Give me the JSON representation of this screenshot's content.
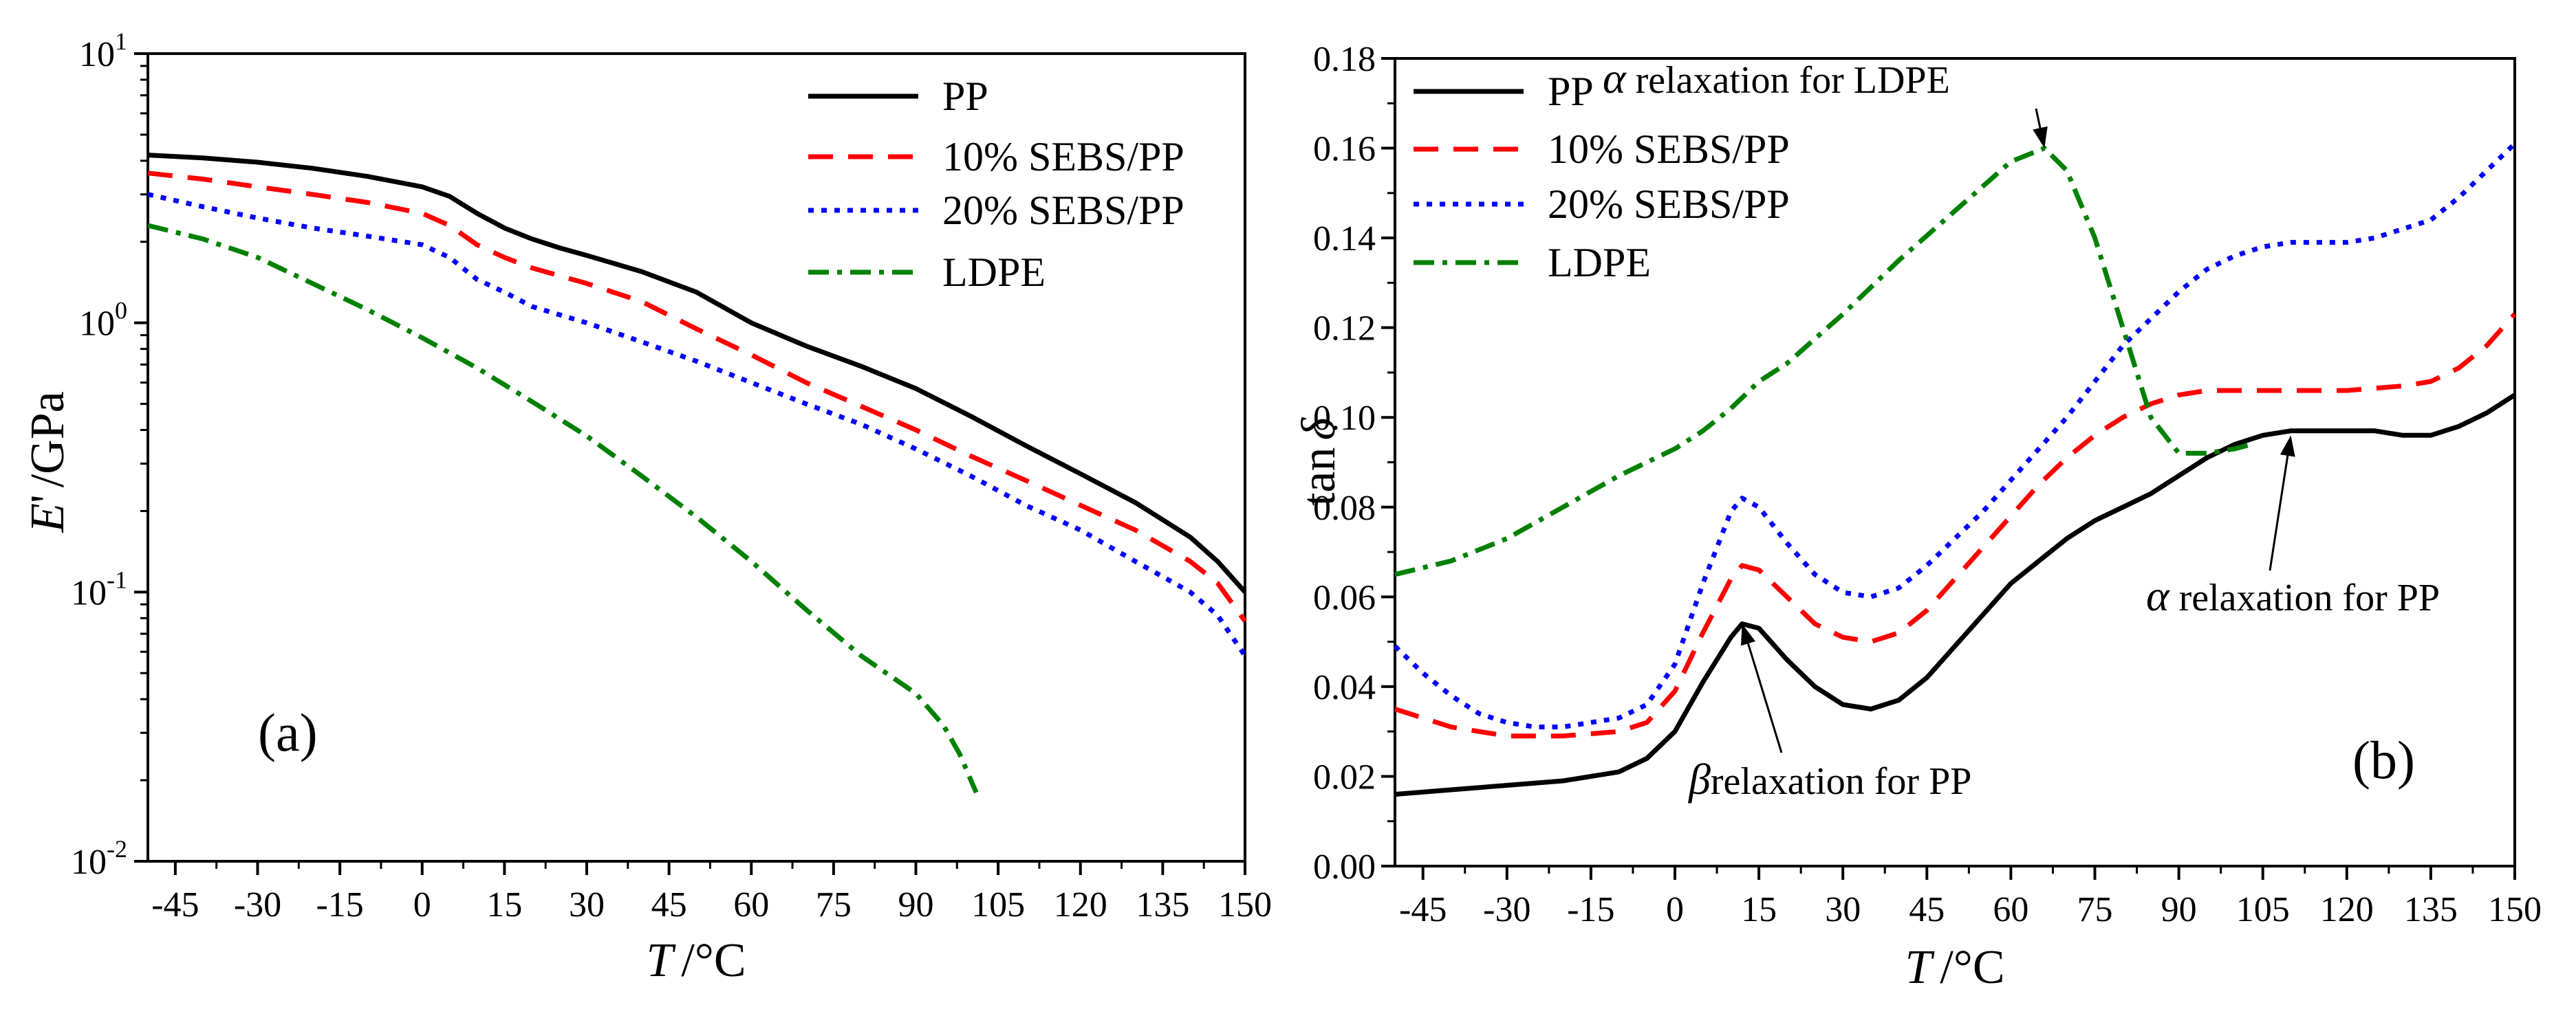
{
  "chart_data": [
    {
      "panel_label": "(a)",
      "type": "line",
      "ylabel": "E' /GPa",
      "ylabel_main": "E",
      "ylabel_prime": "'",
      "ylabel_unit": "/GPa",
      "xlabel": "T /°C",
      "xlabel_var": "T",
      "xlabel_unit": "/°C",
      "xlim": [
        -50,
        150
      ],
      "ylim": [
        0.01,
        10
      ],
      "yscale": "log",
      "x_ticks": [
        -45,
        -30,
        -15,
        0,
        15,
        30,
        45,
        60,
        75,
        90,
        105,
        120,
        135,
        150
      ],
      "x_tick_labels": [
        "-45",
        "-30",
        "-15",
        "0",
        "15",
        "30",
        "45",
        "60",
        "75",
        "90",
        "105",
        "120",
        "135",
        "150"
      ],
      "y_ticks": [
        {
          "value": 10,
          "base": "10",
          "exp": "1"
        },
        {
          "value": 1,
          "base": "10",
          "exp": "0"
        },
        {
          "value": 0.1,
          "base": "10",
          "exp": "-1"
        },
        {
          "value": 0.01,
          "base": "10",
          "exp": "-2"
        }
      ],
      "legend_position": "top-right",
      "series": [
        {
          "name": "PP",
          "color": "#000000",
          "style": "solid",
          "points": [
            [
              -50,
              4.2
            ],
            [
              -40,
              4.1
            ],
            [
              -30,
              3.95
            ],
            [
              -20,
              3.75
            ],
            [
              -10,
              3.5
            ],
            [
              0,
              3.2
            ],
            [
              5,
              2.95
            ],
            [
              10,
              2.55
            ],
            [
              15,
              2.25
            ],
            [
              20,
              2.05
            ],
            [
              25,
              1.9
            ],
            [
              30,
              1.78
            ],
            [
              40,
              1.55
            ],
            [
              50,
              1.3
            ],
            [
              60,
              1.0
            ],
            [
              70,
              0.82
            ],
            [
              80,
              0.69
            ],
            [
              90,
              0.57
            ],
            [
              100,
              0.45
            ],
            [
              110,
              0.35
            ],
            [
              120,
              0.275
            ],
            [
              130,
              0.215
            ],
            [
              140,
              0.16
            ],
            [
              145,
              0.13
            ],
            [
              150,
              0.1
            ]
          ]
        },
        {
          "name": "10% SEBS/PP",
          "color": "#ff0000",
          "style": "dashed",
          "points": [
            [
              -50,
              3.6
            ],
            [
              -40,
              3.42
            ],
            [
              -30,
              3.2
            ],
            [
              -20,
              3.0
            ],
            [
              -10,
              2.8
            ],
            [
              0,
              2.55
            ],
            [
              5,
              2.3
            ],
            [
              10,
              1.95
            ],
            [
              15,
              1.75
            ],
            [
              20,
              1.6
            ],
            [
              30,
              1.4
            ],
            [
              40,
              1.2
            ],
            [
              50,
              0.95
            ],
            [
              60,
              0.76
            ],
            [
              70,
              0.6
            ],
            [
              80,
              0.49
            ],
            [
              90,
              0.4
            ],
            [
              100,
              0.32
            ],
            [
              110,
              0.26
            ],
            [
              120,
              0.21
            ],
            [
              130,
              0.17
            ],
            [
              140,
              0.13
            ],
            [
              145,
              0.108
            ],
            [
              150,
              0.078
            ]
          ]
        },
        {
          "name": "20% SEBS/PP",
          "color": "#0000ff",
          "style": "dotted",
          "points": [
            [
              -50,
              3.0
            ],
            [
              -40,
              2.7
            ],
            [
              -30,
              2.45
            ],
            [
              -20,
              2.25
            ],
            [
              -10,
              2.1
            ],
            [
              0,
              1.95
            ],
            [
              5,
              1.75
            ],
            [
              10,
              1.45
            ],
            [
              15,
              1.3
            ],
            [
              20,
              1.15
            ],
            [
              30,
              1.0
            ],
            [
              40,
              0.85
            ],
            [
              50,
              0.72
            ],
            [
              60,
              0.6
            ],
            [
              70,
              0.5
            ],
            [
              80,
              0.42
            ],
            [
              90,
              0.34
            ],
            [
              100,
              0.27
            ],
            [
              110,
              0.21
            ],
            [
              120,
              0.17
            ],
            [
              130,
              0.13
            ],
            [
              140,
              0.1
            ],
            [
              145,
              0.082
            ],
            [
              150,
              0.058
            ]
          ]
        },
        {
          "name": "LDPE",
          "color": "#008000",
          "style": "dashdot",
          "points": [
            [
              -50,
              2.3
            ],
            [
              -40,
              2.05
            ],
            [
              -30,
              1.75
            ],
            [
              -20,
              1.4
            ],
            [
              -10,
              1.12
            ],
            [
              0,
              0.88
            ],
            [
              10,
              0.68
            ],
            [
              20,
              0.51
            ],
            [
              30,
              0.38
            ],
            [
              40,
              0.27
            ],
            [
              50,
              0.19
            ],
            [
              60,
              0.13
            ],
            [
              70,
              0.086
            ],
            [
              80,
              0.058
            ],
            [
              90,
              0.042
            ],
            [
              95,
              0.032
            ],
            [
              98,
              0.025
            ],
            [
              101,
              0.018
            ]
          ]
        }
      ]
    },
    {
      "panel_label": "(b)",
      "type": "line",
      "ylabel": "tan δ",
      "ylabel_main": "tan",
      "ylabel_sym": "δ",
      "xlabel": "T /°C",
      "xlabel_var": "T",
      "xlabel_unit": "/°C",
      "xlim": [
        -50,
        150
      ],
      "ylim": [
        0,
        0.18
      ],
      "yscale": "linear",
      "x_ticks": [
        -45,
        -30,
        -15,
        0,
        15,
        30,
        45,
        60,
        75,
        90,
        105,
        120,
        135,
        150
      ],
      "x_tick_labels": [
        "-45",
        "-30",
        "-15",
        "0",
        "15",
        "30",
        "45",
        "60",
        "75",
        "90",
        "105",
        "120",
        "135",
        "150"
      ],
      "y_ticks": [
        0,
        0.02,
        0.04,
        0.06,
        0.08,
        0.1,
        0.12,
        0.14,
        0.16,
        0.18
      ],
      "y_tick_labels": [
        "0.00",
        "0.02",
        "0.04",
        "0.06",
        "0.08",
        "0.10",
        "0.12",
        "0.14",
        "0.16",
        "0.18"
      ],
      "legend_position": "top-left",
      "annotations": [
        {
          "greek": "α",
          "text": " relaxation for LDPE",
          "point": [
            66,
            0.16
          ]
        },
        {
          "greek": "β",
          "text": "relaxation for PP",
          "point": [
            12,
            0.054
          ]
        },
        {
          "greek": "α",
          "text": " relaxation for PP",
          "point": [
            110,
            0.096
          ]
        }
      ],
      "series": [
        {
          "name": "PP",
          "color": "#000000",
          "style": "solid",
          "points": [
            [
              -50,
              0.016
            ],
            [
              -40,
              0.017
            ],
            [
              -30,
              0.018
            ],
            [
              -20,
              0.019
            ],
            [
              -10,
              0.021
            ],
            [
              -5,
              0.024
            ],
            [
              0,
              0.03
            ],
            [
              5,
              0.041
            ],
            [
              10,
              0.051
            ],
            [
              12,
              0.054
            ],
            [
              15,
              0.053
            ],
            [
              20,
              0.046
            ],
            [
              25,
              0.04
            ],
            [
              30,
              0.036
            ],
            [
              35,
              0.035
            ],
            [
              40,
              0.037
            ],
            [
              45,
              0.042
            ],
            [
              50,
              0.049
            ],
            [
              55,
              0.056
            ],
            [
              60,
              0.063
            ],
            [
              65,
              0.068
            ],
            [
              70,
              0.073
            ],
            [
              75,
              0.077
            ],
            [
              80,
              0.08
            ],
            [
              85,
              0.083
            ],
            [
              90,
              0.087
            ],
            [
              95,
              0.091
            ],
            [
              100,
              0.094
            ],
            [
              105,
              0.096
            ],
            [
              110,
              0.097
            ],
            [
              115,
              0.097
            ],
            [
              120,
              0.097
            ],
            [
              125,
              0.097
            ],
            [
              130,
              0.096
            ],
            [
              135,
              0.096
            ],
            [
              140,
              0.098
            ],
            [
              145,
              0.101
            ],
            [
              150,
              0.105
            ]
          ]
        },
        {
          "name": "10% SEBS/PP",
          "color": "#ff0000",
          "style": "dashed",
          "points": [
            [
              -50,
              0.035
            ],
            [
              -40,
              0.031
            ],
            [
              -30,
              0.029
            ],
            [
              -20,
              0.029
            ],
            [
              -10,
              0.03
            ],
            [
              -5,
              0.032
            ],
            [
              0,
              0.039
            ],
            [
              5,
              0.052
            ],
            [
              10,
              0.064
            ],
            [
              12,
              0.067
            ],
            [
              15,
              0.066
            ],
            [
              20,
              0.06
            ],
            [
              25,
              0.054
            ],
            [
              30,
              0.051
            ],
            [
              35,
              0.05
            ],
            [
              40,
              0.052
            ],
            [
              45,
              0.057
            ],
            [
              50,
              0.064
            ],
            [
              55,
              0.071
            ],
            [
              60,
              0.078
            ],
            [
              65,
              0.085
            ],
            [
              70,
              0.091
            ],
            [
              75,
              0.096
            ],
            [
              80,
              0.1
            ],
            [
              85,
              0.103
            ],
            [
              90,
              0.105
            ],
            [
              95,
              0.106
            ],
            [
              100,
              0.106
            ],
            [
              110,
              0.106
            ],
            [
              120,
              0.106
            ],
            [
              130,
              0.107
            ],
            [
              135,
              0.108
            ],
            [
              140,
              0.111
            ],
            [
              145,
              0.116
            ],
            [
              150,
              0.123
            ]
          ]
        },
        {
          "name": "20% SEBS/PP",
          "color": "#0000ff",
          "style": "dotted",
          "points": [
            [
              -50,
              0.049
            ],
            [
              -45,
              0.043
            ],
            [
              -40,
              0.038
            ],
            [
              -35,
              0.034
            ],
            [
              -30,
              0.032
            ],
            [
              -25,
              0.031
            ],
            [
              -20,
              0.031
            ],
            [
              -15,
              0.032
            ],
            [
              -10,
              0.033
            ],
            [
              -5,
              0.036
            ],
            [
              0,
              0.045
            ],
            [
              5,
              0.063
            ],
            [
              10,
              0.079
            ],
            [
              12,
              0.082
            ],
            [
              15,
              0.08
            ],
            [
              20,
              0.072
            ],
            [
              25,
              0.065
            ],
            [
              30,
              0.061
            ],
            [
              35,
              0.06
            ],
            [
              40,
              0.062
            ],
            [
              45,
              0.067
            ],
            [
              50,
              0.073
            ],
            [
              55,
              0.079
            ],
            [
              60,
              0.086
            ],
            [
              65,
              0.093
            ],
            [
              70,
              0.1
            ],
            [
              75,
              0.108
            ],
            [
              80,
              0.116
            ],
            [
              85,
              0.122
            ],
            [
              90,
              0.128
            ],
            [
              95,
              0.133
            ],
            [
              100,
              0.136
            ],
            [
              105,
              0.138
            ],
            [
              110,
              0.139
            ],
            [
              115,
              0.139
            ],
            [
              120,
              0.139
            ],
            [
              125,
              0.14
            ],
            [
              130,
              0.142
            ],
            [
              135,
              0.144
            ],
            [
              140,
              0.149
            ],
            [
              145,
              0.155
            ],
            [
              150,
              0.161
            ]
          ]
        },
        {
          "name": "LDPE",
          "color": "#008000",
          "style": "dashdot",
          "points": [
            [
              -50,
              0.065
            ],
            [
              -40,
              0.068
            ],
            [
              -30,
              0.073
            ],
            [
              -20,
              0.08
            ],
            [
              -10,
              0.087
            ],
            [
              0,
              0.093
            ],
            [
              5,
              0.097
            ],
            [
              10,
              0.102
            ],
            [
              15,
              0.108
            ],
            [
              20,
              0.112
            ],
            [
              30,
              0.123
            ],
            [
              40,
              0.135
            ],
            [
              50,
              0.146
            ],
            [
              60,
              0.157
            ],
            [
              66,
              0.16
            ],
            [
              70,
              0.155
            ],
            [
              75,
              0.14
            ],
            [
              80,
              0.12
            ],
            [
              85,
              0.1
            ],
            [
              90,
              0.092
            ],
            [
              95,
              0.092
            ],
            [
              100,
              0.093
            ],
            [
              103,
              0.094
            ]
          ]
        }
      ]
    }
  ]
}
